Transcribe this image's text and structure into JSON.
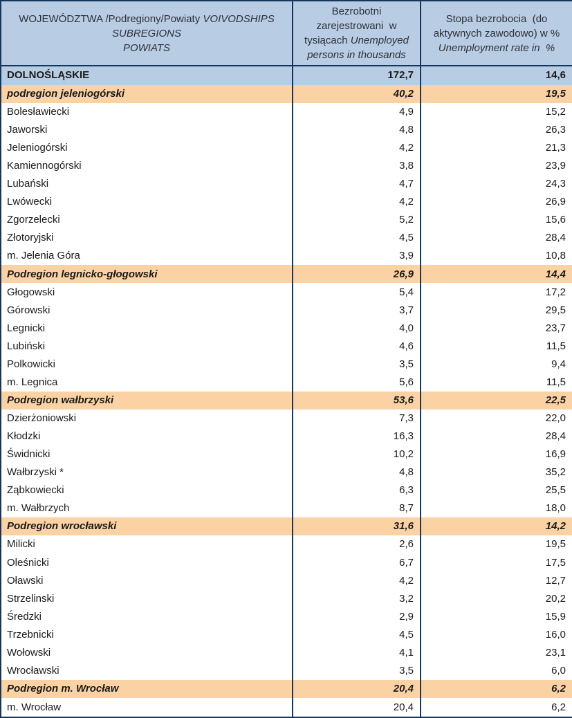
{
  "table": {
    "header": {
      "col_region": {
        "pl": "WOJEWÓDZTWA /Podregiony/Powiaty",
        "en_line1": "VOIVODSHIPS",
        "en_line2": "SUBREGIONS",
        "en_line3": "POWIATS"
      },
      "col_unemployed": {
        "l1": "Bezrobotni",
        "l2": "zarejestrowani  w",
        "l3_pl": "tysiącach",
        "l3_en": "Unemployed",
        "l4": "persons in thousands"
      },
      "col_rate": {
        "l1": "Stopa bezrobocia  (do",
        "l2": "aktywnych zawodowo) w %",
        "l3": "Unemployment rate in  %"
      }
    },
    "colors": {
      "header_blue": "#B8CCE4",
      "subregion_orange": "#FBD2A4",
      "border_navy": "#16365C"
    },
    "rows": [
      {
        "type": "voivodship",
        "name": "DOLNOŚLĄSKIE",
        "unemployed": "172,7",
        "rate": "14,6"
      },
      {
        "type": "subregion",
        "name": "podregion  jeleniogórski",
        "unemployed": "40,2",
        "rate": "19,5"
      },
      {
        "type": "powiat",
        "name": "Bolesławiecki",
        "unemployed": "4,9",
        "rate": "15,2"
      },
      {
        "type": "powiat",
        "name": "Jaworski",
        "unemployed": "4,8",
        "rate": "26,3"
      },
      {
        "type": "powiat",
        "name": "Jeleniogórski",
        "unemployed": "4,2",
        "rate": "21,3"
      },
      {
        "type": "powiat",
        "name": "Kamiennogórski",
        "unemployed": "3,8",
        "rate": "23,9"
      },
      {
        "type": "powiat",
        "name": "Lubański",
        "unemployed": "4,7",
        "rate": "24,3"
      },
      {
        "type": "powiat",
        "name": "Lwówecki",
        "unemployed": "4,2",
        "rate": "26,9"
      },
      {
        "type": "powiat",
        "name": "Zgorzelecki",
        "unemployed": "5,2",
        "rate": "15,6"
      },
      {
        "type": "powiat",
        "name": "Złotoryjski",
        "unemployed": "4,5",
        "rate": "28,4"
      },
      {
        "type": "powiat",
        "name": "m. Jelenia Góra",
        "unemployed": "3,9",
        "rate": "10,8"
      },
      {
        "type": "subregion",
        "name": "Podregion legnicko-głogowski",
        "unemployed": "26,9",
        "rate": "14,4"
      },
      {
        "type": "powiat",
        "name": "Głogowski",
        "unemployed": "5,4",
        "rate": "17,2"
      },
      {
        "type": "powiat",
        "name": "Górowski",
        "unemployed": "3,7",
        "rate": "29,5"
      },
      {
        "type": "powiat",
        "name": "Legnicki",
        "unemployed": "4,0",
        "rate": "23,7"
      },
      {
        "type": "powiat",
        "name": "Lubiński",
        "unemployed": "4,6",
        "rate": "11,5"
      },
      {
        "type": "powiat",
        "name": "Polkowicki",
        "unemployed": "3,5",
        "rate": "9,4"
      },
      {
        "type": "powiat",
        "name": "m. Legnica",
        "unemployed": "5,6",
        "rate": "11,5"
      },
      {
        "type": "subregion",
        "name": "Podregion wałbrzyski",
        "unemployed": "53,6",
        "rate": "22,5"
      },
      {
        "type": "powiat",
        "name": "Dzierżoniowski",
        "unemployed": "7,3",
        "rate": "22,0"
      },
      {
        "type": "powiat",
        "name": "Kłodzki",
        "unemployed": "16,3",
        "rate": "28,4"
      },
      {
        "type": "powiat",
        "name": "Świdnicki",
        "unemployed": "10,2",
        "rate": "16,9"
      },
      {
        "type": "powiat",
        "name": "Wałbrzyski *",
        "unemployed": "4,8",
        "rate": "35,2"
      },
      {
        "type": "powiat",
        "name": "Ząbkowiecki",
        "unemployed": "6,3",
        "rate": "25,5"
      },
      {
        "type": "powiat",
        "name": "m. Wałbrzych",
        "unemployed": "8,7",
        "rate": "18,0"
      },
      {
        "type": "subregion",
        "name": "Podregion wrocławski",
        "unemployed": "31,6",
        "rate": "14,2"
      },
      {
        "type": "powiat",
        "name": "Milicki",
        "unemployed": "2,6",
        "rate": "19,5"
      },
      {
        "type": "powiat",
        "name": "Oleśnicki",
        "unemployed": "6,7",
        "rate": "17,5"
      },
      {
        "type": "powiat",
        "name": "Oławski",
        "unemployed": "4,2",
        "rate": "12,7"
      },
      {
        "type": "powiat",
        "name": "Strzelinski",
        "unemployed": "3,2",
        "rate": "20,2"
      },
      {
        "type": "powiat",
        "name": "Średzki",
        "unemployed": "2,9",
        "rate": "15,9"
      },
      {
        "type": "powiat",
        "name": "Trzebnicki",
        "unemployed": "4,5",
        "rate": "16,0"
      },
      {
        "type": "powiat",
        "name": "Wołowski",
        "unemployed": "4,1",
        "rate": "23,1"
      },
      {
        "type": "powiat",
        "name": "Wrocławski",
        "unemployed": "3,5",
        "rate": "6,0"
      },
      {
        "type": "subregion",
        "name": "Podregion m. Wrocław",
        "unemployed": "20,4",
        "rate": "6,2"
      },
      {
        "type": "powiat",
        "name": "m. Wrocław",
        "unemployed": "20,4",
        "rate": "6,2"
      }
    ]
  }
}
